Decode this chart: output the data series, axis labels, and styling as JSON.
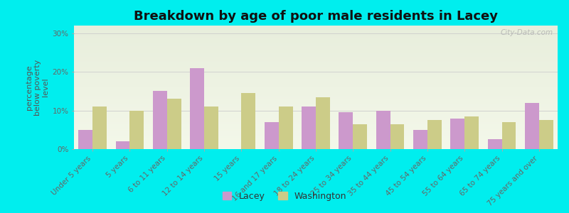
{
  "title": "Breakdown by age of poor male residents in Lacey",
  "ylabel": "percentage\nbelow poverty\nlevel",
  "categories": [
    "Under 5 years",
    "5 years",
    "6 to 11 years",
    "12 to 14 years",
    "15 years",
    "16 and 17 years",
    "18 to 24 years",
    "25 to 34 years",
    "35 to 44 years",
    "45 to 54 years",
    "55 to 64 years",
    "65 to 74 years",
    "75 years and over"
  ],
  "lacey": [
    5.0,
    2.0,
    15.0,
    21.0,
    0.0,
    7.0,
    11.0,
    9.5,
    10.0,
    5.0,
    8.0,
    2.5,
    12.0
  ],
  "washington": [
    11.0,
    10.0,
    13.0,
    11.0,
    14.5,
    11.0,
    13.5,
    6.5,
    6.5,
    7.5,
    8.5,
    7.0,
    7.5
  ],
  "lacey_color": "#cc99cc",
  "washington_color": "#cccc88",
  "outer_bg": "#00eeee",
  "plot_bg_top": "#e8eedc",
  "plot_bg_bottom": "#f4f8ea",
  "bar_width": 0.38,
  "ylim": [
    0,
    32
  ],
  "yticks": [
    0,
    10,
    20,
    30
  ],
  "ytick_labels": [
    "0%",
    "10%",
    "20%",
    "30%"
  ],
  "title_fontsize": 13,
  "axis_fontsize": 8,
  "tick_fontsize": 7.5,
  "legend_fontsize": 9,
  "watermark": "City-Data.com"
}
